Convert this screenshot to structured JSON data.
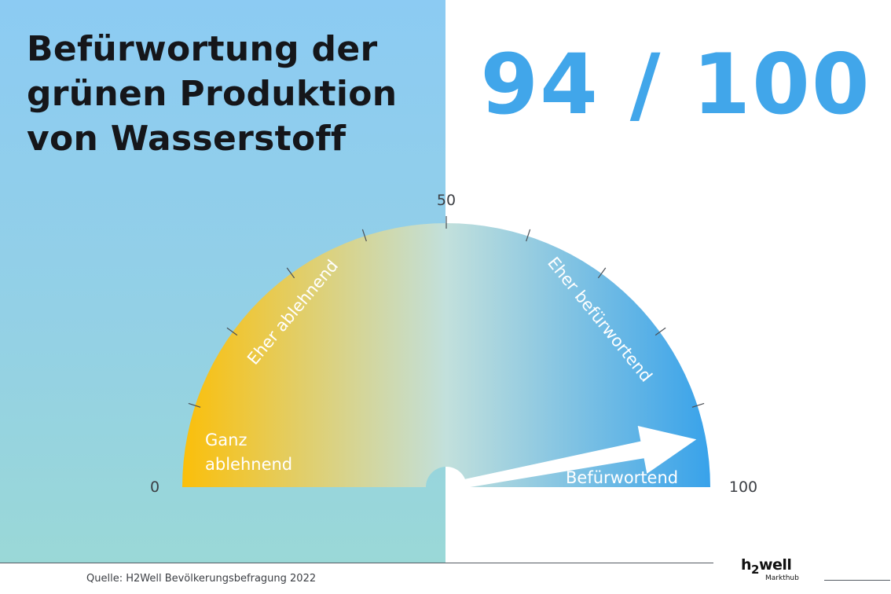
{
  "title_lines": [
    "Befürwortung der",
    "grünen Produktion",
    "von Wasserstoff"
  ],
  "score_text": "94 / 100",
  "source": "Quelle: H2Well Bevölkerungsbefragung 2022",
  "logo": {
    "text": "h2well",
    "main_a": "h",
    "main_sub": "2",
    "main_b": "well",
    "sub": "Markthub"
  },
  "colors": {
    "accent": "#41a6ea",
    "gauge_low": "#fbbf0a",
    "gauge_mid": "#c2e0dc",
    "gauge_high": "#38a2ea",
    "left_panel": "#8ccbf3"
  },
  "chart_data": {
    "type": "gauge",
    "value": 94,
    "min": 0,
    "max": 100,
    "scale_labels": [
      "0",
      "50",
      "100"
    ],
    "tick_values": [
      0,
      10,
      20,
      30,
      40,
      50,
      60,
      70,
      80,
      90,
      100
    ],
    "segments": [
      {
        "label_lines": [
          "Ganz",
          "ablehnend"
        ]
      },
      {
        "label": "Eher ablehnend"
      },
      {
        "label": "Eher befürwortend"
      },
      {
        "label": "Befürwortend"
      }
    ]
  }
}
